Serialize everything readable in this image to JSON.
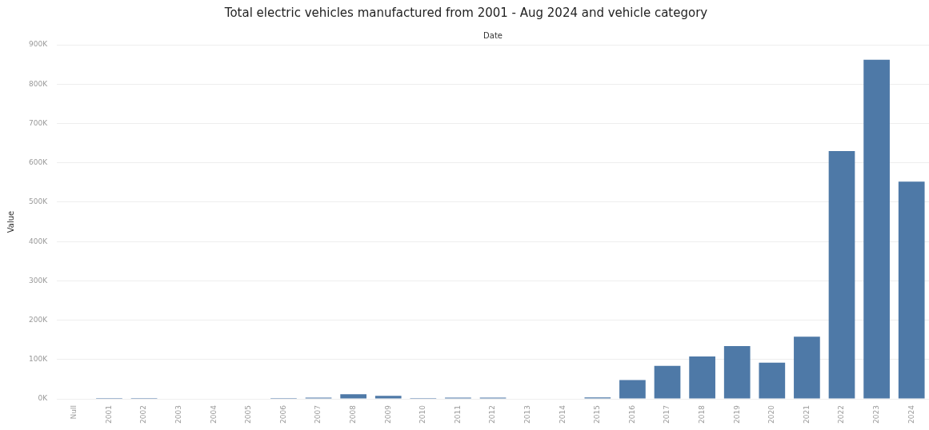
{
  "chart_data": {
    "type": "bar",
    "title": "Total electric vehicles manufactured from 2001 - Aug 2024 and vehicle category",
    "xlabel": "Date",
    "ylabel": "Value",
    "categories": [
      "Null",
      "2001",
      "2002",
      "2003",
      "2004",
      "2005",
      "2006",
      "2007",
      "2008",
      "2009",
      "2010",
      "2011",
      "2012",
      "2013",
      "2014",
      "2015",
      "2016",
      "2017",
      "2018",
      "2019",
      "2020",
      "2021",
      "2022",
      "2023",
      "2024"
    ],
    "values": [
      0,
      2000,
      2000,
      0,
      0,
      0,
      2000,
      3000,
      12000,
      8000,
      2000,
      3000,
      3000,
      1000,
      1000,
      4000,
      48000,
      84000,
      108000,
      134000,
      92000,
      158000,
      630000,
      862000,
      552000
    ],
    "color": "#4e79a7",
    "ylim": [
      0,
      900000
    ],
    "yticks": [
      {
        "value": 0,
        "label": "0K"
      },
      {
        "value": 100000,
        "label": "100K"
      },
      {
        "value": 200000,
        "label": "200K"
      },
      {
        "value": 300000,
        "label": "300K"
      },
      {
        "value": 400000,
        "label": "400K"
      },
      {
        "value": 500000,
        "label": "500K"
      },
      {
        "value": 600000,
        "label": "600K"
      },
      {
        "value": 700000,
        "label": "700K"
      },
      {
        "value": 800000,
        "label": "800K"
      },
      {
        "value": 900000,
        "label": "900K"
      }
    ],
    "grid": "y",
    "legend": false
  }
}
